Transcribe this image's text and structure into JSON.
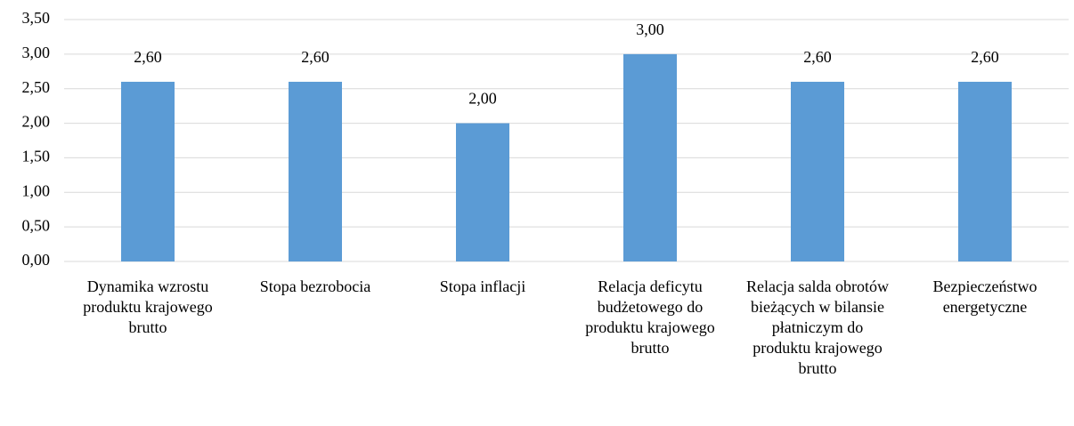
{
  "chart_data": {
    "type": "bar",
    "categories": [
      "Dynamika wzrostu produktu krajowego brutto",
      "Stopa bezrobocia",
      "Stopa inflacji",
      "Relacja deficytu budżetowego do produktu krajowego brutto",
      "Relacja salda obrotów bieżących w bilansie płatniczym do produktu krajowego brutto",
      "Bezpieczeństwo energetyczne"
    ],
    "values": [
      2.6,
      2.6,
      2.0,
      3.0,
      2.6,
      2.6
    ],
    "value_labels": [
      "2,60",
      "2,60",
      "2,00",
      "3,00",
      "2,60",
      "2,60"
    ],
    "color": "#5b9bd5",
    "ylim": [
      0,
      3.5
    ],
    "yticks": [
      {
        "value": 0,
        "label": "0,00"
      },
      {
        "value": 0.5,
        "label": "0,50"
      },
      {
        "value": 1,
        "label": "1,00"
      },
      {
        "value": 1.5,
        "label": "1,50"
      },
      {
        "value": 2,
        "label": "2,00"
      },
      {
        "value": 2.5,
        "label": "2,50"
      },
      {
        "value": 3,
        "label": "3,00"
      },
      {
        "value": 3.5,
        "label": "3,50"
      }
    ],
    "grid": true
  }
}
